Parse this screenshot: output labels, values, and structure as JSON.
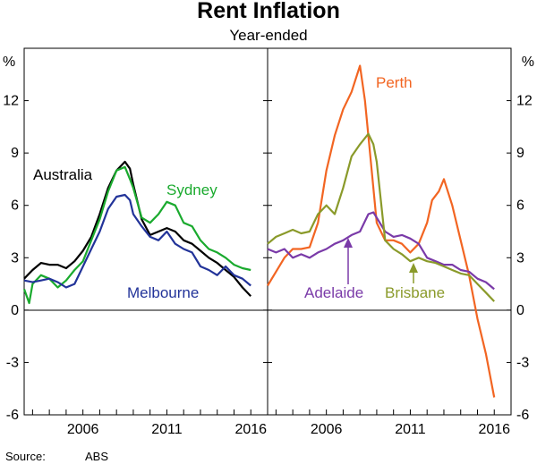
{
  "chart_data": [
    {
      "type": "line",
      "title": "Rent Inflation",
      "subtitle": "Year-ended",
      "y_unit": "%",
      "ylim": [
        -6,
        15
      ],
      "yticks": [
        "12",
        "9",
        "6",
        "3",
        "0",
        "-3",
        "-6"
      ],
      "xlim": [
        2002.5,
        2017
      ],
      "xticks": [
        "2006",
        "2011",
        "2016"
      ],
      "grid": false,
      "series": [
        {
          "name": "Australia",
          "color": "#000000",
          "x": [
            2002.5,
            2003.0,
            2003.5,
            2004.0,
            2004.5,
            2005.0,
            2005.5,
            2006.0,
            2006.5,
            2007.0,
            2007.5,
            2008.0,
            2008.5,
            2008.8,
            2009.0,
            2009.5,
            2010.0,
            2010.5,
            2011.0,
            2011.5,
            2012.0,
            2012.5,
            2013.0,
            2013.5,
            2014.0,
            2014.5,
            2015.0,
            2015.5,
            2016.0
          ],
          "y": [
            1.8,
            2.3,
            2.7,
            2.6,
            2.6,
            2.4,
            2.8,
            3.4,
            4.2,
            5.5,
            7.0,
            8.0,
            8.5,
            8.1,
            7.2,
            5.2,
            4.3,
            4.5,
            4.7,
            4.5,
            4.0,
            3.8,
            3.4,
            3.0,
            2.7,
            2.3,
            1.9,
            1.3,
            0.8
          ]
        },
        {
          "name": "Sydney",
          "color": "#1aaa2e",
          "x": [
            2002.5,
            2002.8,
            2003.0,
            2003.5,
            2004.0,
            2004.5,
            2005.0,
            2005.5,
            2006.0,
            2006.5,
            2007.0,
            2007.5,
            2008.0,
            2008.5,
            2008.8,
            2009.0,
            2009.5,
            2010.0,
            2010.5,
            2011.0,
            2011.5,
            2012.0,
            2012.5,
            2013.0,
            2013.5,
            2014.0,
            2014.5,
            2015.0,
            2015.5,
            2016.0
          ],
          "y": [
            1.2,
            0.4,
            1.5,
            2.0,
            1.8,
            1.3,
            1.7,
            2.3,
            2.8,
            4.0,
            5.2,
            6.8,
            8.0,
            8.2,
            7.5,
            7.0,
            5.3,
            5.0,
            5.5,
            6.2,
            6.0,
            5.0,
            4.8,
            4.0,
            3.5,
            3.3,
            3.0,
            2.6,
            2.4,
            2.3
          ]
        },
        {
          "name": "Melbourne",
          "color": "#223399",
          "x": [
            2002.5,
            2003.0,
            2003.5,
            2004.0,
            2004.5,
            2005.0,
            2005.5,
            2006.0,
            2006.5,
            2007.0,
            2007.5,
            2008.0,
            2008.5,
            2008.8,
            2009.0,
            2009.5,
            2010.0,
            2010.5,
            2011.0,
            2011.5,
            2012.0,
            2012.5,
            2013.0,
            2013.5,
            2014.0,
            2014.5,
            2015.0,
            2015.5,
            2016.0
          ],
          "y": [
            1.7,
            1.6,
            1.7,
            1.8,
            1.6,
            1.3,
            1.5,
            2.5,
            3.5,
            4.5,
            5.8,
            6.5,
            6.6,
            6.3,
            5.5,
            4.8,
            4.2,
            4.0,
            4.5,
            3.8,
            3.5,
            3.3,
            2.5,
            2.3,
            2.0,
            2.5,
            2.0,
            1.8,
            1.4
          ]
        }
      ]
    },
    {
      "type": "line",
      "y_unit": "%",
      "ylim": [
        -6,
        15
      ],
      "yticks": [
        "12",
        "9",
        "6",
        "3",
        "0",
        "-3",
        "-6"
      ],
      "xlim": [
        2002.5,
        2017
      ],
      "xticks": [
        "2006",
        "2011",
        "2016"
      ],
      "grid": false,
      "series": [
        {
          "name": "Perth",
          "color": "#f26522",
          "x": [
            2002.5,
            2003.0,
            2003.5,
            2004.0,
            2004.5,
            2005.0,
            2005.5,
            2006.0,
            2006.5,
            2007.0,
            2007.5,
            2008.0,
            2008.3,
            2008.7,
            2009.0,
            2009.5,
            2010.0,
            2010.5,
            2011.0,
            2011.5,
            2012.0,
            2012.3,
            2012.7,
            2013.0,
            2013.5,
            2014.0,
            2014.5,
            2015.0,
            2015.5,
            2016.0
          ],
          "y": [
            1.4,
            2.2,
            3.0,
            3.5,
            3.5,
            3.6,
            5.0,
            8.0,
            10.0,
            11.5,
            12.5,
            14.0,
            12.0,
            8.0,
            5.0,
            4.0,
            4.0,
            3.8,
            3.3,
            3.8,
            5.0,
            6.3,
            6.8,
            7.5,
            6.0,
            4.0,
            2.0,
            -0.5,
            -2.5,
            -5.0
          ]
        },
        {
          "name": "Adelaide",
          "color": "#7a3aa8",
          "x": [
            2002.5,
            2003.0,
            2003.5,
            2004.0,
            2004.5,
            2005.0,
            2005.5,
            2006.0,
            2006.5,
            2007.0,
            2007.5,
            2008.0,
            2008.5,
            2008.8,
            2009.0,
            2009.5,
            2010.0,
            2010.5,
            2011.0,
            2011.5,
            2012.0,
            2012.5,
            2013.0,
            2013.5,
            2014.0,
            2014.5,
            2015.0,
            2015.5,
            2016.0
          ],
          "y": [
            3.5,
            3.3,
            3.5,
            3.0,
            3.2,
            3.0,
            3.3,
            3.5,
            3.8,
            4.0,
            4.3,
            4.5,
            5.5,
            5.6,
            5.3,
            4.5,
            4.2,
            4.3,
            4.1,
            3.8,
            3.0,
            2.8,
            2.6,
            2.6,
            2.3,
            2.2,
            1.8,
            1.6,
            1.2
          ]
        },
        {
          "name": "Brisbane",
          "color": "#8a9a2a",
          "x": [
            2002.5,
            2003.0,
            2003.5,
            2004.0,
            2004.5,
            2005.0,
            2005.5,
            2006.0,
            2006.5,
            2007.0,
            2007.5,
            2008.0,
            2008.5,
            2008.8,
            2009.0,
            2009.5,
            2010.0,
            2010.5,
            2011.0,
            2011.5,
            2012.0,
            2012.5,
            2013.0,
            2013.5,
            2014.0,
            2014.5,
            2015.0,
            2015.5,
            2016.0
          ],
          "y": [
            3.8,
            4.2,
            4.4,
            4.6,
            4.4,
            4.5,
            5.5,
            6.0,
            5.5,
            7.0,
            8.8,
            9.5,
            10.1,
            9.5,
            8.5,
            4.0,
            3.5,
            3.2,
            2.8,
            3.0,
            2.8,
            2.7,
            2.5,
            2.3,
            2.1,
            2.0,
            1.5,
            1.0,
            0.5
          ]
        }
      ]
    }
  ],
  "labels": {
    "australia": "Australia",
    "sydney": "Sydney",
    "melbourne": "Melbourne",
    "perth": "Perth",
    "adelaide": "Adelaide",
    "brisbane": "Brisbane"
  },
  "source": {
    "label": "Source:",
    "value": "ABS"
  }
}
